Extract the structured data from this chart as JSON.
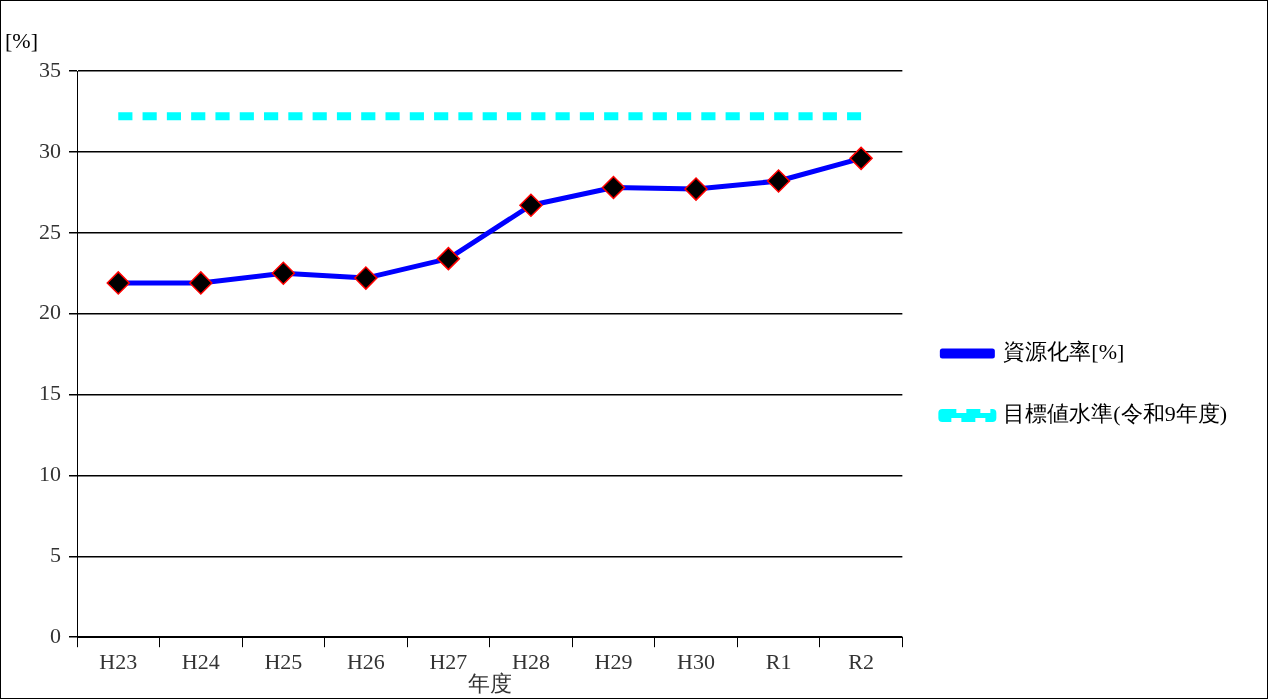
{
  "chart_data": {
    "type": "line",
    "xlabel": "年度",
    "ylabel": "[%]",
    "categories": [
      "H23",
      "H24",
      "H25",
      "H26",
      "H27",
      "H28",
      "H29",
      "H30",
      "R1",
      "R2"
    ],
    "series": [
      {
        "name": "資源化率[%]",
        "color": "#0000ff",
        "marker": "diamond",
        "values": [
          21.9,
          21.9,
          22.5,
          22.2,
          23.4,
          26.7,
          27.8,
          27.7,
          28.2,
          29.6
        ]
      },
      {
        "name": "目標値水準(令和9年度)",
        "color": "#00ffff",
        "marker": "none",
        "line_style": "dashed",
        "values": [
          32.2,
          32.2,
          32.2,
          32.2,
          32.2,
          32.2,
          32.2,
          32.2,
          32.2,
          32.2
        ]
      }
    ],
    "ylim": [
      0,
      35
    ],
    "yticks": [
      0,
      5,
      10,
      15,
      20,
      25,
      30,
      35
    ],
    "grid": "y",
    "legend": "right"
  }
}
